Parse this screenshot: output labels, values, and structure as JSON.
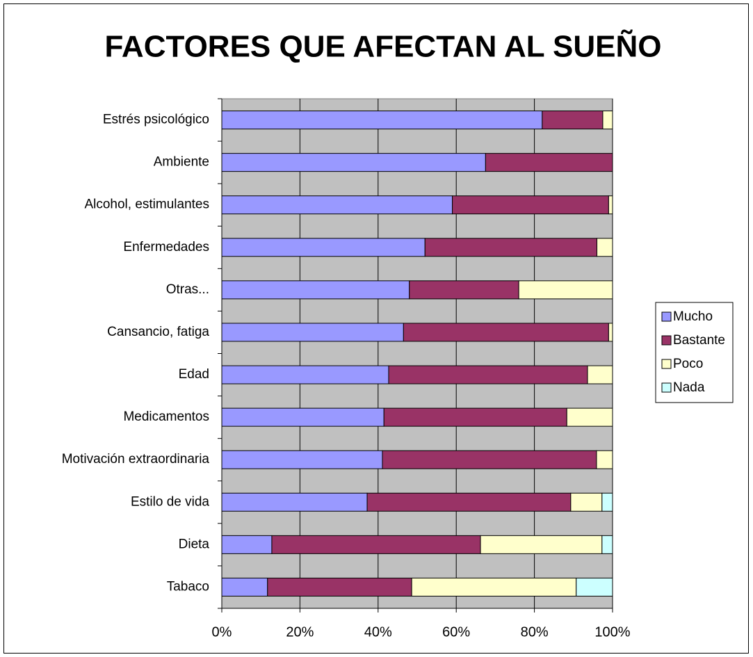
{
  "chart_data": {
    "type": "stacked-bar-horizontal",
    "title": "FACTORES QUE AFECTAN AL SUEÑO",
    "categories": [
      "Estrés psicológico",
      "Ambiente",
      "Alcohol, estimulantes",
      "Enfermedades",
      "Otras...",
      "Cansancio, fatiga",
      "Edad",
      "Medicamentos",
      "Motivación extraordinaria",
      "Estilo de vida",
      "Dieta",
      "Tabaco"
    ],
    "series": [
      {
        "name": "Mucho",
        "color": "#9999ff",
        "values": [
          82,
          67.5,
          59,
          52,
          48,
          46.5,
          42.7,
          41.5,
          41.1,
          37.2,
          12.8,
          11.7
        ]
      },
      {
        "name": "Bastante",
        "color": "#993366",
        "values": [
          15.5,
          32.5,
          40,
          44,
          28,
          52.5,
          50.9,
          46.8,
          54.8,
          52.1,
          53.4,
          36.9
        ]
      },
      {
        "name": "Poco",
        "color": "#ffffcc",
        "values": [
          2.5,
          0,
          1,
          4,
          24,
          1,
          6.4,
          11.7,
          4.1,
          8,
          31.1,
          42.1
        ]
      },
      {
        "name": "Nada",
        "color": "#ccffff",
        "values": [
          0,
          0,
          0,
          0,
          0,
          0,
          0,
          0,
          0,
          2.7,
          2.7,
          9.3
        ]
      }
    ],
    "xlim": [
      0,
      100
    ],
    "xticks": [
      {
        "value": 0,
        "label": "0%"
      },
      {
        "value": 20,
        "label": "20%"
      },
      {
        "value": 40,
        "label": "40%"
      },
      {
        "value": 60,
        "label": "60%"
      },
      {
        "value": 80,
        "label": "80%"
      },
      {
        "value": 100,
        "label": "100%"
      }
    ],
    "grid": true,
    "plot_background": "#c0c0c0",
    "legend": "right"
  }
}
